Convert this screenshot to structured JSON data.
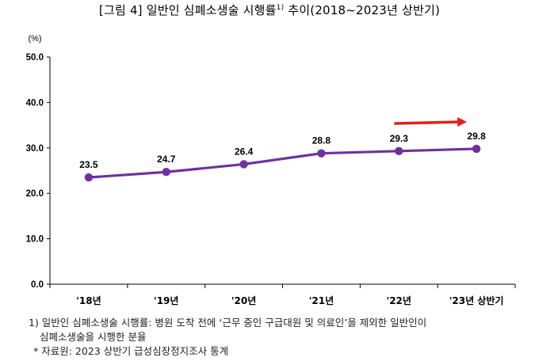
{
  "figure": {
    "title_main": "[그림 4] 일반인 심폐소생술 시행률",
    "title_sup": "1)",
    "title_tail": " 추이(2018~2023년 상반기)"
  },
  "chart_data": {
    "type": "line",
    "categories": [
      "'18년",
      "'19년",
      "'20년",
      "'21년",
      "'22년",
      "'23년 상반기"
    ],
    "series": [
      {
        "values": [
          23.5,
          24.7,
          26.4,
          28.8,
          29.3,
          29.8
        ],
        "color": "#7030a0"
      }
    ],
    "data_labels": [
      "23.5",
      "24.7",
      "26.4",
      "28.8",
      "29.3",
      "29.8"
    ],
    "ylim": [
      0,
      50
    ],
    "yticks": [
      0,
      10,
      20,
      30,
      40,
      50
    ],
    "ytick_labels": [
      "0.0",
      "10.0",
      "20.0",
      "30.0",
      "40.0",
      "50.0"
    ],
    "yunit": "(%)",
    "grid": false,
    "legend": "none",
    "annotation": {
      "type": "trend-arrow",
      "color": "#e0201b",
      "near": "'22년–'23년 상반기"
    }
  },
  "footnotes": {
    "note1_line1": "1) 일반인 심폐소생술 시행률: 병원 도착 전에 ‘근무 중인 구급대원 및 의료인’을 제외한 일반인이",
    "note1_line2": "심폐소생술을 시행한 분율",
    "source": "* 자료원: 2023 상반기 급성심장정지조사 통계"
  }
}
